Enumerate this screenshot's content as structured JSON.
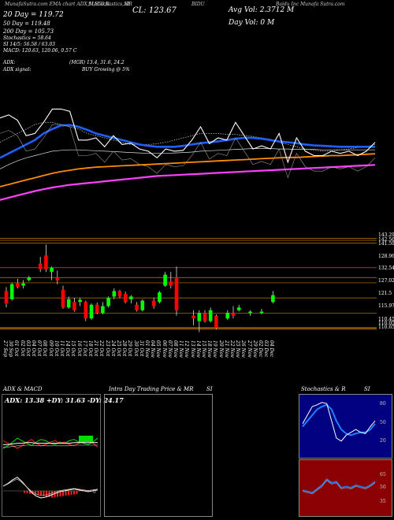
{
  "header": {
    "row1": [
      "MunafaSutra.com",
      "EMA chart",
      "ADX,MACD,R",
      "SI,Stochastics,MR",
      "SI",
      "CL: 123.67",
      "BIDU",
      "Avg Vol: 2.3712  M",
      "Baidu Inc Munafa Sutra.com"
    ],
    "ema_lines": [
      "20  Day = 119.72",
      "50  Day = 119.48",
      "200  Day = 105.73",
      "Stochastics = 58.64",
      "SI 14/5: 56.58  / 63.03",
      "MACD: 120.63,  120.06,  0.57 C"
    ],
    "day_vol": "Day Vol: 0   M",
    "adx_line": "ADX:",
    "adx_mid": "(MGR) 13.4,  31.6,  24.2",
    "adx_signal": "ADX  signal:",
    "adx_buy": "BUY Growing @ 5%"
  },
  "price_levels": [
    "143.29",
    "142.56",
    "141.59",
    "128.96",
    "132.54",
    "127.02",
    "121.5",
    "115.97",
    "110.45",
    "110.05",
    "110.65"
  ],
  "dates": [
    "27 Sep",
    "30 Sep",
    "01 Oct",
    "02 Oct",
    "03 Oct",
    "04 Oct",
    "07 Oct",
    "08 Oct",
    "09 Oct",
    "10 Oct",
    "11 Oct",
    "14 Oct",
    "15 Oct",
    "16 Oct",
    "17 Oct",
    "18 Oct",
    "21 Oct",
    "22 Oct",
    "23 Oct",
    "24 Oct",
    "25 Oct",
    "28 Oct",
    "29 Oct",
    "30 Oct",
    "31 Oct",
    "01 Nov",
    "04 Nov",
    "05 Nov",
    "06 Nov",
    "07 Nov",
    "08 Nov",
    "11 Nov",
    "12 Nov",
    "13 Nov",
    "14 Nov",
    "15 Nov",
    "18 Nov",
    "19 Nov",
    "20 Nov",
    "21 Nov",
    "22 Nov",
    "25 Nov",
    "26 Nov",
    "27 Nov",
    "29 Nov",
    "02 Dec",
    "03 Dec",
    "04 Dec"
  ],
  "panels": {
    "adx_title": "ADX  & MACD",
    "adx_values": "ADX: 13.38  +DY: 31.63  -DY: 24.17",
    "intra_title": "Intra  Day Trading Price  & MR",
    "intra_si": "SI",
    "stoch_title": "Stochastics & R",
    "stoch_si": "SI",
    "stoch_ticks": [
      "80",
      "50",
      "20"
    ],
    "rsi_ticks": [
      "65",
      "50",
      "35"
    ],
    "macd_ticks": [
      "0"
    ]
  },
  "colors": {
    "ema20": "#ffffff",
    "ema50": "#1f5fff",
    "ema100": "#dddddd",
    "ema200": "#ff8c00",
    "emalong": "#ff40ff",
    "up": "#00ff00",
    "down": "#ff0000",
    "level": "#c08000"
  },
  "chart_data": {
    "type": "candlestick",
    "title": "",
    "price_levels": [
      143.29,
      142.56,
      141.59,
      128.96,
      132.54,
      127.02,
      121.5,
      115.97,
      110.45,
      110.05,
      110.65
    ],
    "candles": [
      {
        "o": 124,
        "h": 125.5,
        "l": 118,
        "c": 119.5
      },
      {
        "o": 121,
        "h": 127,
        "l": 120.5,
        "c": 126.5
      },
      {
        "o": 127,
        "h": 128.5,
        "l": 125,
        "c": 125.5
      },
      {
        "o": 126,
        "h": 128,
        "l": 125,
        "c": 126.8
      },
      {
        "o": 128,
        "h": 129.5,
        "l": 127.5,
        "c": 129
      },
      {
        "o": 0,
        "h": 0,
        "l": 0,
        "c": 0
      },
      {
        "o": 134,
        "h": 136.5,
        "l": 131,
        "c": 132
      },
      {
        "o": 137,
        "h": 141,
        "l": 131,
        "c": 132
      },
      {
        "o": 131,
        "h": 133,
        "l": 128,
        "c": 132.5
      },
      {
        "o": 129,
        "h": 131.5,
        "l": 126.5,
        "c": 128
      },
      {
        "o": 124.5,
        "h": 126,
        "l": 117.5,
        "c": 118
      },
      {
        "o": 118,
        "h": 122,
        "l": 117.5,
        "c": 121
      },
      {
        "o": 120,
        "h": 121.5,
        "l": 116.5,
        "c": 117
      },
      {
        "o": 120,
        "h": 121.5,
        "l": 118.5,
        "c": 120.8
      },
      {
        "o": 120,
        "h": 120.5,
        "l": 113,
        "c": 114
      },
      {
        "o": 114,
        "h": 119.5,
        "l": 113.5,
        "c": 119
      },
      {
        "o": 119,
        "h": 119.8,
        "l": 115.5,
        "c": 116
      },
      {
        "o": 116,
        "h": 120,
        "l": 115.5,
        "c": 118.5
      },
      {
        "o": 118.5,
        "h": 122,
        "l": 118,
        "c": 121.5
      },
      {
        "o": 122,
        "h": 125,
        "l": 121,
        "c": 124
      },
      {
        "o": 124,
        "h": 124.5,
        "l": 121.5,
        "c": 122
      },
      {
        "o": 123,
        "h": 123.8,
        "l": 119.5,
        "c": 120
      },
      {
        "o": 121,
        "h": 122.5,
        "l": 119.5,
        "c": 122
      },
      {
        "o": 119,
        "h": 120,
        "l": 116.5,
        "c": 117
      },
      {
        "o": 117,
        "h": 121,
        "l": 116.5,
        "c": 120.5
      },
      {
        "o": 0,
        "h": 0,
        "l": 0,
        "c": 0
      },
      {
        "o": 120.5,
        "h": 121.5,
        "l": 117.5,
        "c": 118.5
      },
      {
        "o": 120,
        "h": 124,
        "l": 119.5,
        "c": 123.5
      },
      {
        "o": 126,
        "h": 131,
        "l": 125.5,
        "c": 130
      },
      {
        "o": 127.5,
        "h": 131,
        "l": 125,
        "c": 126
      },
      {
        "o": 129,
        "h": 133,
        "l": 115,
        "c": 117
      },
      {
        "o": 0,
        "h": 0,
        "l": 0,
        "c": 0
      },
      {
        "o": 0,
        "h": 0,
        "l": 0,
        "c": 0
      },
      {
        "o": 115,
        "h": 117,
        "l": 111.5,
        "c": 114
      },
      {
        "o": 113,
        "h": 117,
        "l": 109,
        "c": 116
      },
      {
        "o": 116,
        "h": 117,
        "l": 112.5,
        "c": 113
      },
      {
        "o": 113,
        "h": 118,
        "l": 112.5,
        "c": 117
      },
      {
        "o": 115,
        "h": 115.5,
        "l": 110,
        "c": 110.5
      },
      {
        "o": 0,
        "h": 0,
        "l": 0,
        "c": 0
      },
      {
        "o": 114,
        "h": 117,
        "l": 113.5,
        "c": 116
      },
      {
        "o": 116,
        "h": 118.5,
        "l": 114,
        "c": 115
      },
      {
        "o": 117,
        "h": 119,
        "l": 116.5,
        "c": 118
      },
      {
        "o": 0,
        "h": 0,
        "l": 0,
        "c": 0
      },
      {
        "o": 116,
        "h": 117,
        "l": 115,
        "c": 116.5
      },
      {
        "o": 0,
        "h": 0,
        "l": 0,
        "c": 0
      },
      {
        "o": 116,
        "h": 117.5,
        "l": 115.5,
        "c": 116.5
      },
      {
        "o": 0,
        "h": 0,
        "l": 0,
        "c": 0
      },
      {
        "o": 120,
        "h": 124,
        "l": 119.5,
        "c": 122.5
      }
    ],
    "ema_top": {
      "white_price": [
        138.5,
        139.2,
        138,
        134.5,
        135,
        137.5,
        140.5,
        140.5,
        140,
        133.5,
        133.5,
        134,
        132,
        134.5,
        132.5,
        132.8,
        131.5,
        131,
        129.5,
        131.5,
        131,
        131.2,
        133.5,
        136.5,
        132.7,
        134,
        133.5,
        137.5,
        134.5,
        131.5,
        132.2,
        131.5,
        135,
        128.5,
        134,
        131,
        130,
        130,
        131,
        130.5,
        131,
        130,
        131,
        133
      ],
      "blue": [
        129.5,
        130.5,
        131.5,
        132.5,
        133.5,
        135,
        136,
        136.8,
        136.9,
        136.5,
        135.8,
        135,
        134.5,
        134,
        133.5,
        133,
        132.5,
        132.2,
        132,
        132,
        132,
        132.2,
        132.5,
        132.8,
        133,
        133.2,
        133.5,
        133.8,
        134,
        134,
        133.8,
        133.5,
        133.2,
        133,
        132.8,
        132.5,
        132.3,
        132.2,
        132.1,
        132,
        132,
        132,
        132,
        132
      ],
      "dotted_white": [
        133,
        134,
        135,
        136,
        137,
        137.5,
        137.5,
        137,
        136.5,
        136,
        135,
        134.5,
        134,
        133.5,
        133,
        132.5,
        132.5,
        132.5,
        132.7,
        133,
        133.5,
        134,
        134.5,
        135,
        135,
        135,
        134.8,
        134.8,
        134.5,
        134.3,
        134,
        133.7,
        133,
        132.5,
        132,
        131.5,
        131.2,
        131,
        131,
        131.3,
        131.5,
        131.8,
        132,
        132.5
      ],
      "grey_thin": [
        127,
        128,
        128.8,
        129.5,
        130,
        130.5,
        131,
        131.2,
        131.3,
        131.3,
        131.2,
        131.1,
        131,
        130.9,
        130.8,
        130.7,
        130.6,
        130.5,
        130.5,
        130.5,
        130.6,
        130.7,
        130.8,
        131,
        131.1,
        131.2,
        131.3,
        131.4,
        131.5,
        131.6,
        131.6,
        131.6,
        131.5,
        131.5,
        131.4,
        131.4,
        131.4,
        131.3,
        131.3,
        131.3,
        131.3,
        131.3,
        131.3,
        131.3
      ],
      "orange": [
        123,
        123.5,
        124,
        124.5,
        125,
        125.5,
        126,
        126.4,
        126.7,
        127,
        127.2,
        127.4,
        127.5,
        127.6,
        127.7,
        127.8,
        127.9,
        128,
        128.1,
        128.2,
        128.3,
        128.4,
        128.5,
        128.6,
        128.7,
        128.8,
        128.9,
        129,
        129.1,
        129.2,
        129.3,
        129.4,
        129.5,
        129.6,
        129.6,
        129.7,
        129.8,
        129.9,
        130,
        130,
        130.1,
        130.2,
        130.3,
        130.4
      ],
      "magenta": [
        120,
        120.5,
        121,
        121.5,
        122,
        122.4,
        122.8,
        123.1,
        123.4,
        123.6,
        123.8,
        124,
        124.2,
        124.4,
        124.6,
        124.8,
        125,
        125.2,
        125.4,
        125.5,
        125.6,
        125.7,
        125.8,
        125.9,
        126,
        126.1,
        126.2,
        126.3,
        126.4,
        126.5,
        126.6,
        126.7,
        126.8,
        126.9,
        127,
        127.1,
        127.2,
        127.3,
        127.4,
        127.5,
        127.6,
        127.7,
        127.8,
        127.9
      ]
    },
    "stochastics": {
      "k": [
        55,
        70,
        85,
        88,
        92,
        90,
        60,
        30,
        25,
        35,
        40,
        45,
        40,
        38,
        50,
        60
      ],
      "d": [
        50,
        60,
        70,
        80,
        85,
        88,
        80,
        60,
        45,
        38,
        35,
        38,
        40,
        40,
        45,
        55
      ],
      "ticks": [
        80,
        50,
        20
      ]
    },
    "rsi": {
      "values": [
        48,
        47,
        46,
        49,
        52,
        57,
        54,
        55,
        50,
        51,
        50,
        52,
        51,
        50,
        52,
        55
      ],
      "ticks": [
        65,
        50,
        35
      ]
    }
  }
}
